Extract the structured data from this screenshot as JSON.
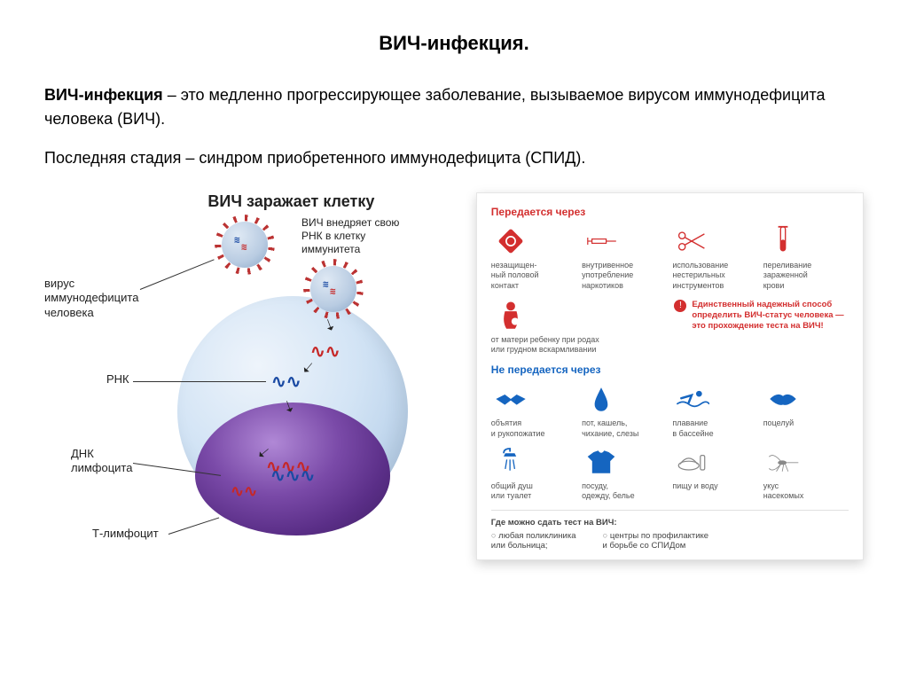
{
  "title": "ВИЧ-инфекция.",
  "intro": {
    "term": "ВИЧ-инфекция",
    "definition": " – это медленно прогрессирующее заболевание, вызываемое вирусом иммунодефицита человека (ВИЧ)."
  },
  "stage": "Последняя стадия – синдром приобретенного иммунодефицита (СПИД).",
  "diagram": {
    "title": "ВИЧ заражает клетку",
    "labels": {
      "virus": "вирус\nиммунодефицита\nчеловека",
      "inject": "ВИЧ внедряет свою\nРНК в клетку\nиммунитета",
      "rna": "РНК",
      "dna": "ДНК\nлимфоцита",
      "tcell": "Т-лимфоцит"
    },
    "colors": {
      "cell_light": "#d3e4f5",
      "cell_edge": "#7fa4cc",
      "nucleus_mid": "#7a4aa8",
      "nucleus_dark": "#3f1e63",
      "rna_red": "#c62828",
      "rna_blue": "#1a4aa3",
      "spike": "#b33333"
    }
  },
  "info": {
    "transmits_title": "Передается через",
    "transmits": [
      {
        "label": "незащищен-\nный половой\nконтакт",
        "icon": "condom",
        "color": "#d32f2f"
      },
      {
        "label": "внутривенное\nупотребление\nнаркотиков",
        "icon": "syringe",
        "color": "#d32f2f"
      },
      {
        "label": "использование\nнестерильных\nинструментов",
        "icon": "scissors",
        "color": "#d32f2f"
      },
      {
        "label": "переливание\nзараженной\nкрови",
        "icon": "testtube",
        "color": "#d32f2f"
      }
    ],
    "mother": {
      "label": "от матери ребенку при родах\nили грудном вскармливании",
      "icon": "mother",
      "color": "#d32f2f"
    },
    "notice": "Единственный надежный способ определить ВИЧ-статус человека — это прохождение теста на ВИЧ!",
    "not_transmits_title": "Не передается через",
    "not_transmits": [
      {
        "label": "объятия\nи рукопожатие",
        "icon": "handshake",
        "color": "#1565c0"
      },
      {
        "label": "пот, кашель,\nчихание, слезы",
        "icon": "drop",
        "color": "#1565c0"
      },
      {
        "label": "плавание\nв бассейне",
        "icon": "swim",
        "color": "#1565c0"
      },
      {
        "label": "поцелуй",
        "icon": "lips",
        "color": "#1565c0"
      },
      {
        "label": "общий душ\nили туалет",
        "icon": "shower",
        "color": "#1565c0"
      },
      {
        "label": "посуду,\nодежду, белье",
        "icon": "tshirt",
        "color": "#1565c0"
      },
      {
        "label": "пищу и воду",
        "icon": "food",
        "color": "#888888"
      },
      {
        "label": "укус\nнасекомых",
        "icon": "mosquito",
        "color": "#888888"
      }
    ],
    "footer_title": "Где можно сдать тест на ВИЧ:",
    "footer_opts": [
      "любая поликлиника\nили больница;",
      "центры по профилактике\nи борьбе со СПИДом"
    ]
  },
  "palette": {
    "red": "#d32f2f",
    "blue": "#1565c0",
    "gray": "#888888",
    "text": "#222222",
    "border": "#e5e5e5"
  }
}
